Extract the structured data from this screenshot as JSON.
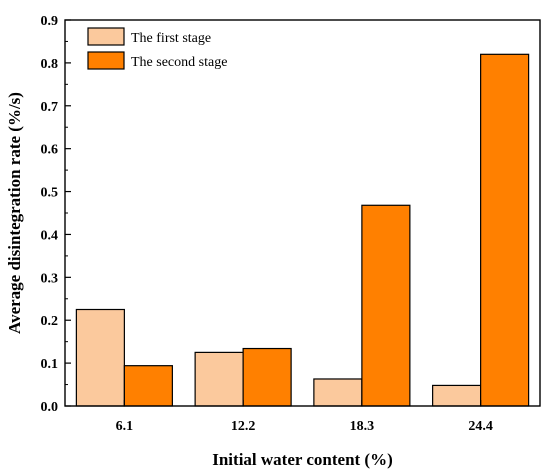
{
  "chart_data": {
    "type": "bar",
    "categories": [
      "6.1",
      "12.2",
      "18.3",
      "24.4"
    ],
    "series": [
      {
        "name": "The first stage",
        "values": [
          0.225,
          0.125,
          0.063,
          0.048
        ],
        "color": "#FBC99D"
      },
      {
        "name": "The second stage",
        "values": [
          0.094,
          0.134,
          0.468,
          0.82
        ],
        "color": "#FF8000"
      }
    ],
    "xlabel": "Initial water content (%)",
    "ylabel": "Average disintegration rate (%/s)",
    "ylim": [
      0,
      0.9
    ],
    "yticks": [
      "0.0",
      "0.1",
      "0.2",
      "0.3",
      "0.4",
      "0.5",
      "0.6",
      "0.7",
      "0.8",
      "0.9"
    ],
    "legend_position": "top-left",
    "grid": false
  }
}
